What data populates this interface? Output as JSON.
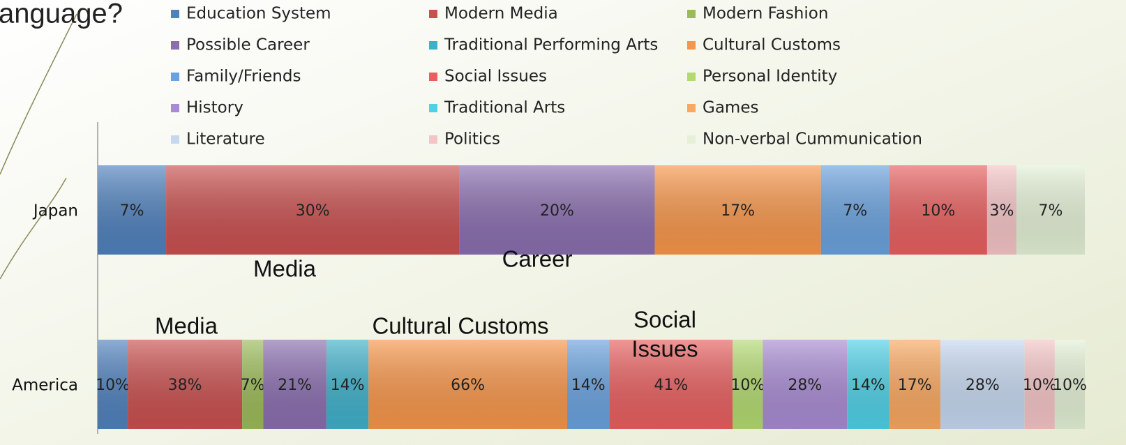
{
  "chart_data": {
    "type": "bar",
    "orientation": "horizontal",
    "stacking": "percent",
    "title": "anguage?",
    "categories": [
      "Japan",
      "America"
    ],
    "series": [
      {
        "name": "Education System",
        "color": "#4f81bd",
        "values": [
          7,
          10
        ],
        "value_labels": [
          "7%",
          "10%"
        ]
      },
      {
        "name": "Modern Media",
        "color": "#c9504f",
        "values": [
          30,
          38
        ],
        "value_labels": [
          "30%",
          "38%"
        ]
      },
      {
        "name": "Modern Fashion",
        "color": "#9bbb59",
        "values": [
          null,
          7
        ],
        "value_labels": [
          null,
          "7%"
        ]
      },
      {
        "name": "Possible Career",
        "color": "#8a6eaf",
        "values": [
          20,
          21
        ],
        "value_labels": [
          "20%",
          "21%"
        ]
      },
      {
        "name": "Traditional Performing Arts",
        "color": "#3fb0c9",
        "values": [
          null,
          14
        ],
        "value_labels": [
          null,
          "14%"
        ]
      },
      {
        "name": "Cultural Customs",
        "color": "#f7964a",
        "values": [
          17,
          66
        ],
        "value_labels": [
          "17%",
          "66%"
        ]
      },
      {
        "name": "Family/Friends",
        "color": "#6aa2de",
        "values": [
          7,
          14
        ],
        "value_labels": [
          "7%",
          "14%"
        ]
      },
      {
        "name": "Social Issues",
        "color": "#e85f5f",
        "values": [
          10,
          41
        ],
        "value_labels": [
          "10%",
          "41%"
        ]
      },
      {
        "name": "Personal Identity",
        "color": "#b3da70",
        "values": [
          null,
          10
        ],
        "value_labels": [
          null,
          "10%"
        ]
      },
      {
        "name": "History",
        "color": "#a88bd3",
        "values": [
          null,
          28
        ],
        "value_labels": [
          null,
          "28%"
        ]
      },
      {
        "name": "Traditional Arts",
        "color": "#4fd0e6",
        "values": [
          null,
          14
        ],
        "value_labels": [
          null,
          "14%"
        ]
      },
      {
        "name": "Games",
        "color": "#f9a860",
        "values": [
          null,
          17
        ],
        "value_labels": [
          null,
          "17%"
        ]
      },
      {
        "name": "Literature",
        "color": "#c6d8f0",
        "values": [
          null,
          28
        ],
        "value_labels": [
          null,
          "28%"
        ]
      },
      {
        "name": "Politics",
        "color": "#f5c4c6",
        "values": [
          3,
          10
        ],
        "value_labels": [
          "3%",
          "10%"
        ]
      },
      {
        "name": "Non-verbal Cummunication",
        "color": "#e4f1d6",
        "values": [
          7,
          10
        ],
        "value_labels": [
          "7%",
          "10%"
        ]
      }
    ],
    "annotations": [
      {
        "lines": [
          "Media"
        ]
      },
      {
        "lines": [
          "Career"
        ]
      },
      {
        "lines": [
          "Media"
        ]
      },
      {
        "lines": [
          "Cultural Customs"
        ]
      },
      {
        "lines": [
          "Social",
          "Issues"
        ]
      }
    ],
    "legend": "top"
  }
}
